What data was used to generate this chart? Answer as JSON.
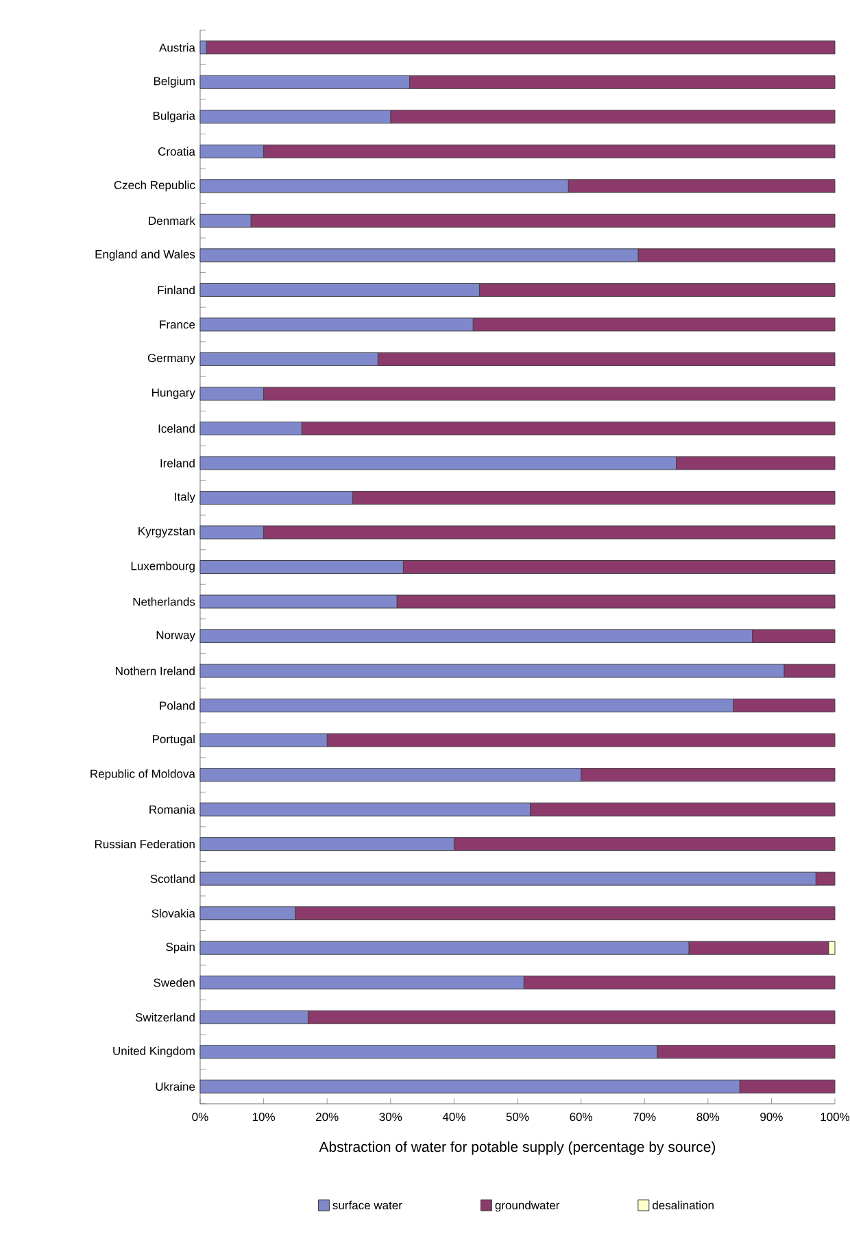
{
  "chart_data": {
    "type": "bar",
    "orientation": "horizontal",
    "stacked": true,
    "categories": [
      "Austria",
      "Belgium",
      "Bulgaria",
      "Croatia",
      "Czech Republic",
      "Denmark",
      "England and Wales",
      "Finland",
      "France",
      "Germany",
      "Hungary",
      "Iceland",
      "Ireland",
      "Italy",
      "Kyrgyzstan",
      "Luxembourg",
      "Netherlands",
      "Norway",
      "Nothern Ireland",
      "Poland",
      "Portugal",
      "Republic of Moldova",
      "Romania",
      "Russian Federation",
      "Scotland",
      "Slovakia",
      "Spain",
      "Sweden",
      "Switzerland",
      "United Kingdom",
      "Ukraine"
    ],
    "series": [
      {
        "name": "surface water",
        "color": "#8088cc",
        "values": [
          1,
          33,
          30,
          10,
          58,
          8,
          69,
          44,
          43,
          28,
          10,
          16,
          75,
          24,
          10,
          32,
          31,
          87,
          92,
          84,
          20,
          60,
          52,
          40,
          97,
          15,
          77,
          51,
          17,
          72,
          85
        ]
      },
      {
        "name": "groundwater",
        "color": "#8c3a6c",
        "values": [
          99,
          67,
          70,
          90,
          42,
          92,
          31,
          56,
          57,
          72,
          90,
          84,
          25,
          76,
          90,
          68,
          69,
          13,
          8,
          16,
          80,
          40,
          48,
          60,
          3,
          85,
          22,
          49,
          83,
          28,
          15
        ]
      },
      {
        "name": "desalination",
        "color": "#ffffcc",
        "values": [
          0,
          0,
          0,
          0,
          0,
          0,
          0,
          0,
          0,
          0,
          0,
          0,
          0,
          0,
          0,
          0,
          0,
          0,
          0,
          0,
          0,
          0,
          0,
          0,
          0,
          0,
          1,
          0,
          0,
          0,
          0
        ]
      }
    ],
    "xlim": [
      0,
      100
    ],
    "xticks": [
      {
        "value": 0,
        "label": "0%"
      },
      {
        "value": 10,
        "label": "10%"
      },
      {
        "value": 20,
        "label": "20%"
      },
      {
        "value": 30,
        "label": "30%"
      },
      {
        "value": 40,
        "label": "40%"
      },
      {
        "value": 50,
        "label": "50%"
      },
      {
        "value": 60,
        "label": "60%"
      },
      {
        "value": 70,
        "label": "70%"
      },
      {
        "value": 80,
        "label": "80%"
      },
      {
        "value": 90,
        "label": "90%"
      },
      {
        "value": 100,
        "label": "100%"
      }
    ],
    "xlabel": "Abstraction of water for potable supply (percentage by source)",
    "grid": false,
    "legend": "bottom"
  }
}
